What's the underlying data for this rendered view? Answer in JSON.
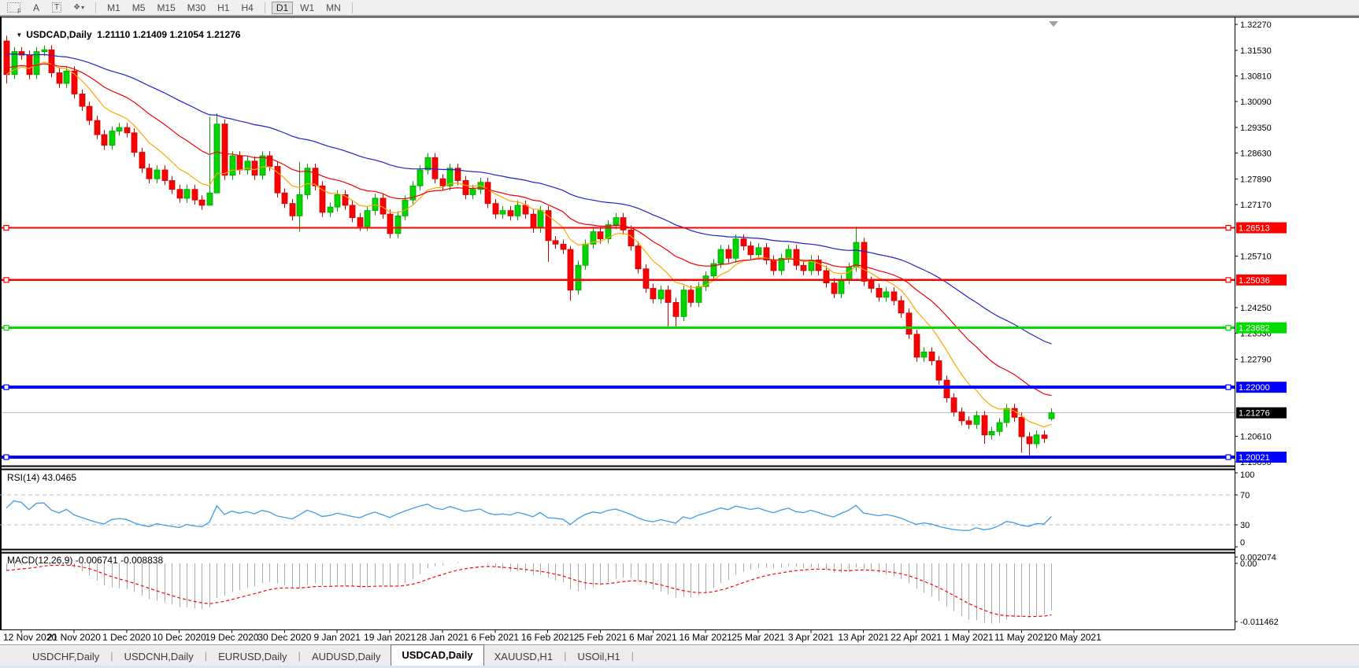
{
  "toolbar": {
    "tools": [
      {
        "name": "grip-f-tool",
        "glyph": "F"
      },
      {
        "name": "arrow-tool",
        "glyph": "A"
      },
      {
        "name": "text-label-tool",
        "glyph": "T"
      },
      {
        "name": "arrows-dropdown",
        "glyph": "❖",
        "caret": "▾"
      }
    ],
    "timeframes": [
      {
        "label": "M1",
        "active": false
      },
      {
        "label": "M5",
        "active": false
      },
      {
        "label": "M15",
        "active": false
      },
      {
        "label": "M30",
        "active": false
      },
      {
        "label": "H1",
        "active": false
      },
      {
        "label": "H4",
        "active": false
      },
      {
        "label": "D1",
        "active": true
      },
      {
        "label": "W1",
        "active": false
      },
      {
        "label": "MN",
        "active": false
      }
    ]
  },
  "chart": {
    "dropdown_glyph": "▼",
    "title_text": "USDCAD,Daily  1.21110 1.21409 1.21054 1.21276"
  },
  "panes": {
    "rsi": {
      "label": "RSI(14) 43.0465"
    },
    "macd": {
      "label": "MACD(12,26,9) -0.006741 -0.008838"
    }
  },
  "tabs": [
    {
      "label": "USDCHF,Daily",
      "active": false
    },
    {
      "label": "USDCNH,Daily",
      "active": false
    },
    {
      "label": "EURUSD,Daily",
      "active": false
    },
    {
      "label": "AUDUSD,Daily",
      "active": false
    },
    {
      "label": "USDCAD,Daily",
      "active": true
    },
    {
      "label": "XAUUSD,H1",
      "active": false
    },
    {
      "label": "USOil,H1",
      "active": false
    }
  ],
  "chart_data": {
    "type": "candlestick+indicators",
    "symbol": "USDCAD",
    "timeframe": "Daily",
    "ohlc_display": {
      "open": "1.21110",
      "high": "1.21409",
      "low": "1.21054",
      "close": "1.21276"
    },
    "y_axis": {
      "top_price": 1.3247,
      "bottom_price": 1.19799,
      "visible_ticks": [
        "1.32270",
        "1.31530",
        "1.30810",
        "1.30090",
        "1.29350",
        "1.28630",
        "1.27890",
        "1.27170",
        "1.25710",
        "1.24250",
        "1.23530",
        "1.22790",
        "1.20610",
        "1.19890"
      ]
    },
    "x_axis": {
      "date_labels": [
        "12 Nov 2020",
        "21 Nov 2020",
        "1 Dec 2020",
        "10 Dec 2020",
        "19 Dec 2020",
        "30 Dec 2020",
        "9 Jan 2021",
        "19 Jan 2021",
        "28 Jan 2021",
        "6 Feb 2021",
        "16 Feb 2021",
        "25 Feb 2021",
        "6 Mar 2021",
        "16 Mar 2021",
        "25 Mar 2021",
        "3 Apr 2021",
        "13 Apr 2021",
        "22 Apr 2021",
        "1 May 2021",
        "11 May 2021",
        "20 May 2021"
      ],
      "first_label_candle_index": 2,
      "candles_per_label": 7
    },
    "candles": {
      "first_open": 1.318,
      "default_wick": 0.0013,
      "up_color": "#00D500",
      "up_border": "#00A000",
      "down_color": "#FB0000",
      "down_border": "#C80000",
      "closes": [
        1.3085,
        1.315,
        1.314,
        1.3085,
        1.315,
        1.3155,
        1.309,
        1.306,
        1.3095,
        1.303,
        1.2995,
        1.2955,
        1.2915,
        1.2885,
        1.2925,
        1.2935,
        1.292,
        1.2865,
        1.282,
        1.279,
        1.2815,
        1.2785,
        1.276,
        1.2735,
        1.276,
        1.273,
        1.2715,
        1.275,
        1.2945,
        1.28,
        1.2855,
        1.2815,
        1.284,
        1.28,
        1.2855,
        1.2825,
        1.275,
        1.272,
        1.2685,
        1.2745,
        1.282,
        1.277,
        1.2695,
        1.271,
        1.2745,
        1.2715,
        1.268,
        1.2655,
        1.27,
        1.2735,
        1.269,
        1.2635,
        1.2685,
        1.273,
        1.277,
        1.2815,
        1.285,
        1.279,
        1.277,
        1.282,
        1.2785,
        1.2745,
        1.276,
        1.278,
        1.272,
        1.269,
        1.27,
        1.2685,
        1.2715,
        1.269,
        1.265,
        1.27,
        1.2615,
        1.2605,
        1.259,
        1.2475,
        1.2545,
        1.2605,
        1.264,
        1.262,
        1.266,
        1.268,
        1.2645,
        1.26,
        1.2535,
        1.248,
        1.245,
        1.2475,
        1.244,
        1.24,
        1.2475,
        1.244,
        1.2485,
        1.2515,
        1.255,
        1.259,
        1.2565,
        1.262,
        1.26,
        1.2575,
        1.2595,
        1.256,
        1.253,
        1.2565,
        1.259,
        1.2545,
        1.253,
        1.256,
        1.253,
        1.2495,
        1.2465,
        1.2505,
        1.254,
        1.261,
        1.25,
        1.248,
        1.2455,
        1.247,
        1.2445,
        1.241,
        1.235,
        1.2285,
        1.23,
        1.2275,
        1.222,
        1.217,
        1.213,
        1.2105,
        1.2095,
        1.212,
        1.2065,
        1.2075,
        1.21,
        1.214,
        1.2115,
        1.206,
        1.204,
        1.2065,
        1.2055,
        1.21276
      ],
      "overrides": {
        "0": {
          "h": 1.3195,
          "l": 1.306
        },
        "27": {
          "h": 1.2965,
          "l": 1.2715
        },
        "28": {
          "h": 1.2975,
          "l": 1.2755
        },
        "39": {
          "h": 1.2838,
          "l": 1.264
        },
        "72": {
          "l": 1.2555
        },
        "75": {
          "h": 1.26,
          "l": 1.2445
        },
        "88": {
          "l": 1.2372
        },
        "89": {
          "l": 1.2368
        },
        "113": {
          "h": 1.2655
        },
        "130": {
          "l": 1.204
        },
        "135": {
          "l": 1.2015
        },
        "136": {
          "l": 1.2002
        },
        "137": {
          "l": 1.2028
        },
        "139": {
          "o": 1.2111,
          "h": 1.21409,
          "l": 1.21054
        }
      }
    },
    "moving_averages": [
      {
        "name": "fast",
        "period": 9,
        "seed_offset": 0.0,
        "color": "#FFA500"
      },
      {
        "name": "mid",
        "period": 22,
        "seed_offset": 0.002,
        "color": "#F00000"
      },
      {
        "name": "slow",
        "period": 50,
        "seed_offset": 0.006,
        "color": "#2020CC"
      }
    ],
    "levels": [
      {
        "price": 1.26513,
        "label": "1.26513",
        "color": "#FF0000",
        "width": 2.2
      },
      {
        "price": 1.25036,
        "label": "1.25036",
        "color": "#FF0000",
        "width": 2.2
      },
      {
        "price": 1.23682,
        "label": "1.23682",
        "color": "#00DC00",
        "width": 3
      },
      {
        "price": 1.22,
        "label": "1.22000",
        "color": "#0000FF",
        "width": 4
      },
      {
        "price": 1.20021,
        "label": "1.20021",
        "color": "#0000FF",
        "width": 4
      }
    ],
    "current_price": {
      "value": 1.21276,
      "label": "1.21276",
      "line_color": "#BEBEBE",
      "box_color": "#000000"
    },
    "rsi": {
      "period": 14,
      "display": "43.0465",
      "color": "#3F9CE8",
      "levels": [
        70,
        30
      ],
      "scale_labels": [
        "100",
        "70",
        "30",
        "0"
      ],
      "seed_gain": 0.0011,
      "seed_loss": 0.001
    },
    "macd": {
      "fast": 12,
      "slow": 26,
      "signal": 9,
      "display_macd": "-0.006741",
      "display_signal": "-0.008838",
      "hist_color": "#ABABAB",
      "signal_color": "#FF0000",
      "scale_labels": {
        "top": "0.002074",
        "zero": "0.00",
        "bottom": "-0.011462"
      },
      "slow_ema_seed_offset": 0.0015
    }
  }
}
